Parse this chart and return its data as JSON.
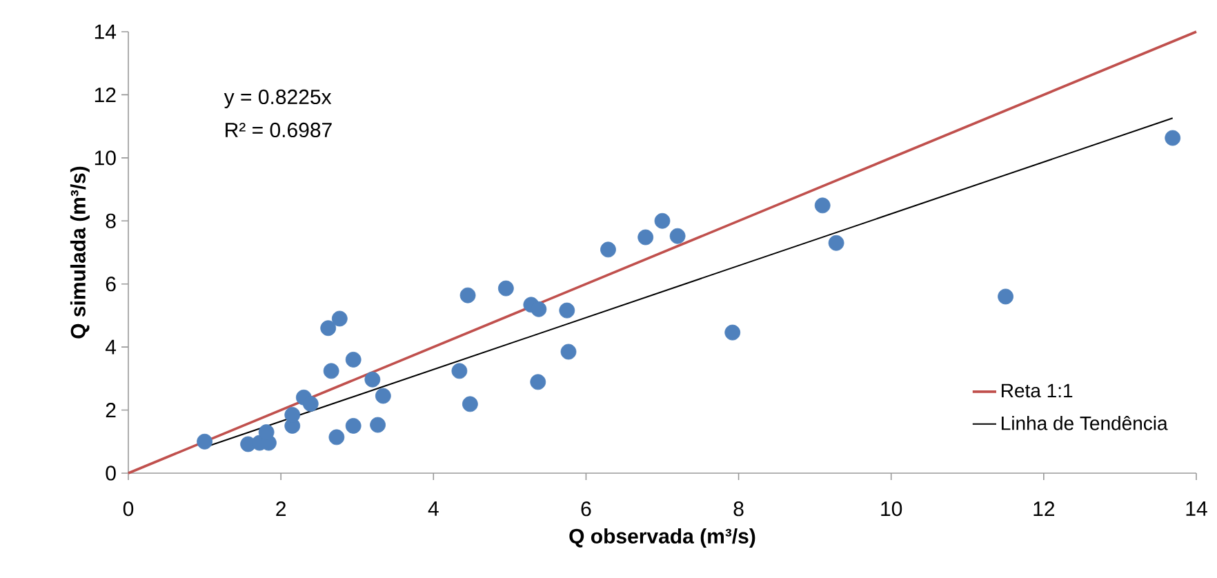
{
  "chart_data": {
    "type": "scatter",
    "xlabel": "Q observada (m³/s)",
    "ylabel": "Q simulada (m³/s)",
    "xlim": [
      0,
      14
    ],
    "ylim": [
      0,
      14
    ],
    "xticks": [
      0,
      2,
      4,
      6,
      8,
      10,
      12,
      14
    ],
    "yticks": [
      0,
      2,
      4,
      6,
      8,
      10,
      12,
      14
    ],
    "grid": false,
    "legend": "bottom right",
    "annotations": [
      "y = 0.8225x",
      "R² = 0.6987"
    ],
    "series": [
      {
        "color": "#4f81bd",
        "marker": "circle",
        "x": [
          1.0,
          1.57,
          1.72,
          1.84,
          1.81,
          2.15,
          2.15,
          2.3,
          2.39,
          2.66,
          2.62,
          2.77,
          2.95,
          2.73,
          2.95,
          3.2,
          3.34,
          3.27,
          4.34,
          4.45,
          4.48,
          4.95,
          5.28,
          5.38,
          5.37,
          5.75,
          5.77,
          6.29,
          6.78,
          7.0,
          7.2,
          7.92,
          9.1,
          9.28,
          11.5,
          13.69
        ],
        "values": [
          1.0,
          0.92,
          0.96,
          0.96,
          1.3,
          1.5,
          1.85,
          2.4,
          2.2,
          3.24,
          4.6,
          4.9,
          3.6,
          1.14,
          1.5,
          2.97,
          2.45,
          1.53,
          3.24,
          5.64,
          2.19,
          5.86,
          5.34,
          5.2,
          2.89,
          5.16,
          3.85,
          7.09,
          7.48,
          8.0,
          7.52,
          4.46,
          8.49,
          7.3,
          5.6,
          10.63
        ]
      },
      {
        "type": "line",
        "name": "Reta 1:1",
        "color": "#c0504d",
        "marker": "none",
        "x": [
          0,
          14
        ],
        "values": [
          0,
          14
        ]
      },
      {
        "type": "line",
        "name": "Linha de Tendência",
        "color": "#000000",
        "marker": "none",
        "x": [
          1.0,
          13.69
        ],
        "values": [
          0.82,
          11.26
        ]
      }
    ]
  }
}
